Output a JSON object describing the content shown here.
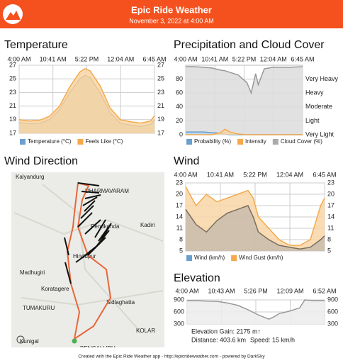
{
  "header": {
    "title": "Epic Ride Weather",
    "subtitle": "November 3, 2022 at 4:00 AM"
  },
  "map": {
    "title": "Wind Direction",
    "places": [
      "Kalyandurg",
      "DHARMAVARAM",
      "Penukonda",
      "Kadiri",
      "Hindupur",
      "Madhugiri",
      "Koratagere",
      "Sidlaghatta",
      "TUMAKURU",
      "KOLAR",
      "Kunigal",
      "BENGALURU"
    ]
  },
  "chart_data": [
    {
      "type": "area",
      "title": "Temperature",
      "xlim": [
        0,
        26.75
      ],
      "xticks": [
        {
          "value": 0,
          "label": "4:00 AM"
        },
        {
          "value": 6.68,
          "label": "10:41 AM"
        },
        {
          "value": 13.37,
          "label": "5:22 PM"
        },
        {
          "value": 20.07,
          "label": "12:04 AM"
        },
        {
          "value": 26.75,
          "label": "6:45 AM"
        }
      ],
      "ylim": [
        17,
        27
      ],
      "yticks": [
        17,
        19,
        21,
        23,
        25,
        27
      ],
      "grid": true,
      "x": [
        0,
        2,
        4,
        6,
        8,
        10,
        12,
        13,
        14,
        16,
        18,
        20,
        22,
        24,
        26,
        26.75
      ],
      "series": [
        {
          "name": "Temperature (°C)",
          "color": "#6a9fd0",
          "line": "#7a6e60",
          "fill": "#c8bcab",
          "values": [
            18.6,
            18.4,
            18.5,
            19,
            20.5,
            23,
            25,
            25.5,
            25.2,
            23,
            20,
            18.5,
            18.2,
            18,
            18.3,
            19
          ]
        },
        {
          "name": "Feels Like (°C)",
          "color": "#f5a94a",
          "line": "#f5a94a",
          "fill": "#f8d6a6",
          "values": [
            19,
            18.8,
            18.9,
            19.5,
            21,
            23.8,
            26,
            26.5,
            26.2,
            24,
            20.7,
            19,
            18.7,
            18.5,
            18.8,
            19.6
          ]
        }
      ]
    },
    {
      "type": "area",
      "title": "Precipitation and Cloud Cover",
      "xlim": [
        0,
        26.75
      ],
      "xticks": [
        {
          "value": 0,
          "label": "4:00 AM"
        },
        {
          "value": 6.68,
          "label": "10:41 AM"
        },
        {
          "value": 13.37,
          "label": "5:22 PM"
        },
        {
          "value": 20.07,
          "label": "12:04 AM"
        },
        {
          "value": 26.75,
          "label": "6:45 AM"
        }
      ],
      "ylim": [
        0,
        100
      ],
      "yticks": [
        0,
        20,
        40,
        60,
        80
      ],
      "y2lim": [
        0,
        5
      ],
      "y2ticks": [
        {
          "value": 0,
          "label": "Very Light"
        },
        {
          "value": 1,
          "label": "Light"
        },
        {
          "value": 2,
          "label": "Moderate"
        },
        {
          "value": 3,
          "label": "Heavy"
        },
        {
          "value": 4,
          "label": "Very Heavy"
        }
      ],
      "grid": true,
      "x": [
        0,
        2,
        4,
        6,
        8,
        9,
        10,
        12,
        14,
        15,
        16,
        16.6,
        18,
        20,
        24,
        26.75
      ],
      "series": [
        {
          "name": "Cloud Cover (%)",
          "color": "#aaaaaa",
          "line": "#999999",
          "fill": "#dcdcdc",
          "values": [
            98,
            98,
            97,
            96,
            93,
            92,
            90,
            86,
            75,
            60,
            88,
            72,
            95,
            97,
            97,
            98
          ]
        },
        {
          "name": "Probability (%)",
          "color": "#6a9fd0",
          "line": "#6a9fd0",
          "fill": "#b9d4ee",
          "values": [
            4,
            4,
            4,
            3,
            2,
            1,
            0,
            0,
            0,
            0,
            0,
            0,
            0,
            0,
            0,
            0
          ]
        },
        {
          "name": "Intensity",
          "color": "#f5a94a",
          "line": "#f5a94a",
          "fill": "#f8d6a6",
          "axis": "y2",
          "values": [
            0,
            0,
            0,
            0,
            0.15,
            0.4,
            0.2,
            0.05,
            0,
            0,
            0,
            0,
            0,
            0,
            0,
            0
          ]
        }
      ]
    },
    {
      "type": "area",
      "title": "Wind",
      "xlim": [
        0,
        26.75
      ],
      "xticks": [
        {
          "value": 0,
          "label": "4:00 AM"
        },
        {
          "value": 6.68,
          "label": "10:41 AM"
        },
        {
          "value": 13.37,
          "label": "5:22 PM"
        },
        {
          "value": 20.07,
          "label": "12:04 AM"
        },
        {
          "value": 26.75,
          "label": "6:45 AM"
        }
      ],
      "ylim": [
        5,
        23
      ],
      "yticks": [
        5,
        8,
        11,
        14,
        17,
        20,
        23
      ],
      "grid": true,
      "x": [
        0,
        2,
        4,
        6,
        8,
        10,
        12,
        13,
        14,
        16,
        18,
        20,
        22,
        24,
        26,
        26.75
      ],
      "series": [
        {
          "name": "Wind Gust (km/h)",
          "color": "#f5a94a",
          "line": "#f5a94a",
          "fill": "#f8d6a6",
          "values": [
            22,
            17,
            20,
            18,
            19,
            20,
            21,
            19,
            14,
            11,
            8,
            6.5,
            6.5,
            8,
            17,
            19
          ]
        },
        {
          "name": "Wind (km/h)",
          "color": "#6a9fd0",
          "line": "#7a6e60",
          "fill": "#c8bcab",
          "values": [
            16,
            12,
            10,
            13,
            15,
            16,
            17,
            14,
            10,
            8,
            6.5,
            6,
            5.5,
            6,
            8,
            9
          ]
        }
      ]
    },
    {
      "type": "area",
      "title": "Elevation",
      "xlim": [
        0,
        26.87
      ],
      "xticks": [
        {
          "value": 0,
          "label": "4:00 AM"
        },
        {
          "value": 6.72,
          "label": "10:43 AM"
        },
        {
          "value": 13.43,
          "label": "5:26 PM"
        },
        {
          "value": 20.15,
          "label": "12:09 AM"
        },
        {
          "value": 26.87,
          "label": "6:52 AM"
        }
      ],
      "ylim": [
        300,
        900
      ],
      "yticks": [
        300,
        600,
        900
      ],
      "grid": true,
      "x": [
        0,
        2,
        4,
        6,
        8,
        10,
        12,
        14,
        16,
        17,
        18,
        20,
        22,
        23,
        25,
        26.87
      ],
      "series": [
        {
          "name": "Elevation",
          "color": "#999999",
          "line": "#999999",
          "fill": "#ececec",
          "values": [
            880,
            880,
            870,
            860,
            820,
            760,
            650,
            520,
            420,
            480,
            560,
            620,
            700,
            900,
            880,
            880
          ]
        }
      ],
      "stats": [
        "Elevation Gain: 2175 m↑",
        "Distance: 403.6 km",
        "Speed: 15 km/h"
      ]
    }
  ],
  "footer": "Created with the Epic Ride Weather app - http://epicrideweather.com - powered by DarkSky"
}
